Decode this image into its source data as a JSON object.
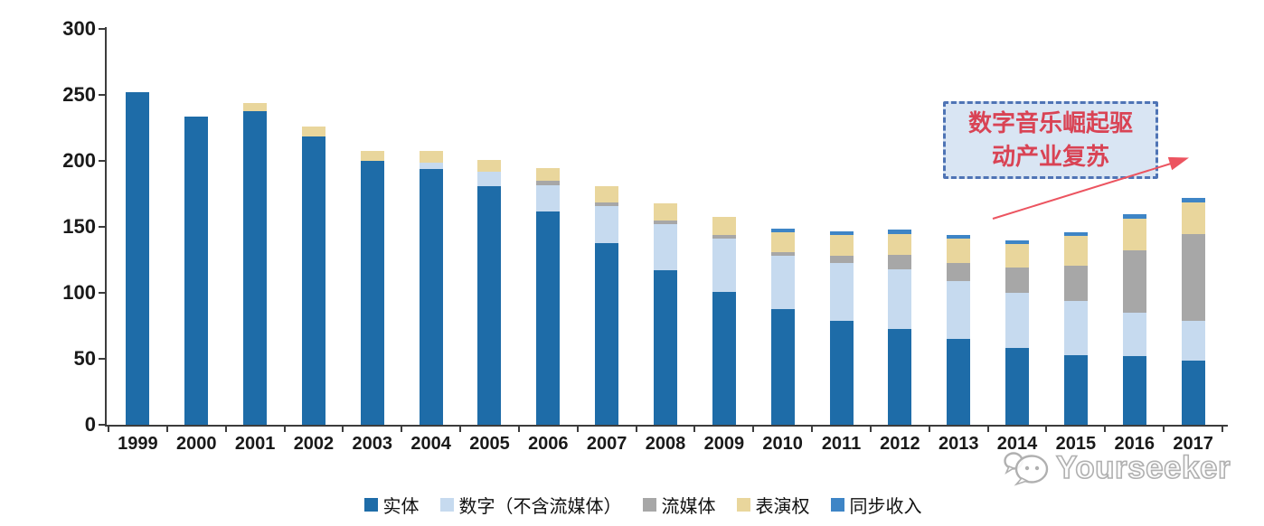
{
  "chart_data": {
    "type": "bar",
    "stacked": true,
    "title": "",
    "xlabel": "",
    "ylabel": "",
    "categories": [
      "1999",
      "2000",
      "2001",
      "2002",
      "2003",
      "2004",
      "2005",
      "2006",
      "2007",
      "2008",
      "2009",
      "2010",
      "2011",
      "2012",
      "2013",
      "2014",
      "2015",
      "2016",
      "2017"
    ],
    "series": [
      {
        "name": "实体",
        "color": "#1E6CA8",
        "values": [
          252,
          234,
          238,
          219,
          200,
          194,
          181,
          162,
          138,
          117,
          101,
          88,
          79,
          73,
          65,
          58,
          53,
          52,
          49
        ]
      },
      {
        "name": "数字（不含流媒体）",
        "color": "#C6DAEF",
        "values": [
          0,
          0,
          0,
          0,
          0,
          5,
          11,
          20,
          28,
          35,
          40,
          40,
          44,
          45,
          44,
          42,
          41,
          33,
          30
        ]
      },
      {
        "name": "流媒体",
        "color": "#A7A7A7",
        "values": [
          0,
          0,
          0,
          0,
          0,
          0,
          0,
          3,
          3,
          3,
          3,
          3,
          5,
          11,
          14,
          19,
          27,
          47,
          66
        ]
      },
      {
        "name": "表演权",
        "color": "#E9D69C",
        "values": [
          0,
          0,
          6,
          7,
          8,
          9,
          9,
          10,
          12,
          13,
          14,
          15,
          16,
          16,
          18,
          18,
          22,
          24,
          24
        ]
      },
      {
        "name": "同步收入",
        "color": "#3E85C6",
        "values": [
          0,
          0,
          0,
          0,
          0,
          0,
          0,
          0,
          0,
          0,
          0,
          3,
          3,
          3,
          3,
          3,
          3,
          4,
          3
        ]
      }
    ],
    "ylim": [
      0,
      300
    ],
    "y_ticks": [
      0,
      50,
      100,
      150,
      200,
      250,
      300
    ],
    "grid": false,
    "legend_position": "bottom"
  },
  "annotation": {
    "line1": "数字音乐崛起驱",
    "line2": "动产业复苏",
    "text_color": "#d94354",
    "border_color": "#4f74b5",
    "fill_color": "#d9e5f3",
    "arrow_color": "#ec5460"
  },
  "watermark": {
    "text": "Yourseeker"
  }
}
